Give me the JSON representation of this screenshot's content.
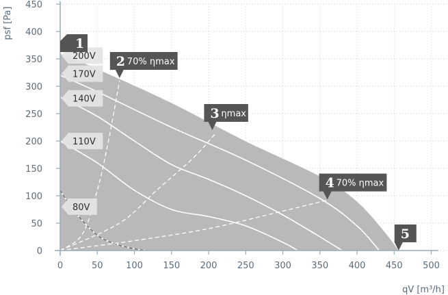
{
  "chart_data": {
    "type": "line",
    "title": "",
    "xlabel": "qV [m³/h]",
    "ylabel": "psf [Pa]",
    "xlim": [
      0,
      520
    ],
    "ylim": [
      0,
      450
    ],
    "x_ticks": [
      "0",
      "50",
      "100",
      "150",
      "200",
      "250",
      "300",
      "350",
      "400",
      "450",
      "500"
    ],
    "y_ticks": [
      "0",
      "50",
      "100",
      "150",
      "200",
      "250",
      "300",
      "350",
      "400",
      "450"
    ],
    "grid": true,
    "colors": {
      "area": "#b9b9b9",
      "curve": "#ffffff",
      "efficiency_line": "#ffffff",
      "marker": "#555555",
      "voltage_label_bg": "#e4e4e4",
      "axis": "#9aaab9"
    },
    "operating_area": {
      "x": [
        0,
        0,
        50,
        150,
        250,
        350,
        400,
        440,
        456
      ],
      "y": [
        0,
        360,
        332,
        270,
        200,
        136,
        90,
        30,
        0
      ]
    },
    "series": [
      {
        "name": "200V",
        "x": [
          0,
          50,
          150,
          250,
          350,
          400,
          440,
          456
        ],
        "y": [
          360,
          332,
          270,
          200,
          136,
          90,
          30,
          0
        ]
      },
      {
        "name": "170V",
        "x": [
          0,
          50,
          150,
          250,
          350,
          400,
          430
        ],
        "y": [
          320,
          290,
          225,
          165,
          95,
          45,
          0
        ]
      },
      {
        "name": "140V",
        "x": [
          0,
          50,
          100,
          150,
          200,
          250,
          300,
          350,
          380
        ],
        "y": [
          280,
          245,
          200,
          157,
          130,
          100,
          65,
          25,
          0
        ]
      },
      {
        "name": "110V",
        "x": [
          0,
          50,
          100,
          150,
          200,
          250,
          300,
          320
        ],
        "y": [
          200,
          160,
          110,
          75,
          62,
          45,
          15,
          0
        ]
      },
      {
        "name": "80V",
        "x": [
          0,
          20,
          50,
          75,
          100,
          120
        ],
        "y": [
          110,
          70,
          28,
          12,
          3,
          0
        ]
      }
    ],
    "efficiency_lines": [
      {
        "marker": "1",
        "name": "",
        "x": [
          0
        ],
        "y": [
          360
        ]
      },
      {
        "marker": "2",
        "name": "70% ηmax",
        "x": [
          0,
          30,
          50,
          65,
          80
        ],
        "y": [
          0,
          30,
          110,
          200,
          310
        ]
      },
      {
        "marker": "3",
        "name": "ηmax",
        "x": [
          0,
          80,
          130,
          180,
          210
        ],
        "y": [
          0,
          50,
          110,
          170,
          215
        ]
      },
      {
        "marker": "4",
        "name": "70% ηmax",
        "x": [
          0,
          100,
          200,
          300,
          360
        ],
        "y": [
          0,
          18,
          40,
          72,
          92
        ]
      },
      {
        "marker": "5",
        "name": "",
        "x": [
          456
        ],
        "y": [
          0
        ]
      }
    ],
    "labels": [
      {
        "kind": "voltage",
        "text": "200V",
        "x": 0,
        "y": 356
      },
      {
        "kind": "voltage",
        "text": "170V",
        "x": 0,
        "y": 323
      },
      {
        "kind": "voltage",
        "text": "140V",
        "x": 0,
        "y": 278
      },
      {
        "kind": "voltage",
        "text": "110V",
        "x": 0,
        "y": 200
      },
      {
        "kind": "voltage",
        "text": "80V",
        "x": 0,
        "y": 80
      },
      {
        "kind": "marker",
        "num": "1",
        "text": "",
        "x": 0,
        "y": 360
      },
      {
        "kind": "marker",
        "num": "2",
        "text": "70% ηmax",
        "x": 80,
        "y": 315
      },
      {
        "kind": "marker",
        "num": "3",
        "text": "ηmax",
        "x": 205,
        "y": 220
      },
      {
        "kind": "marker",
        "num": "4",
        "text": "70% ηmax",
        "x": 360,
        "y": 93
      },
      {
        "kind": "marker",
        "num": "5",
        "text": "",
        "x": 456,
        "y": 0
      }
    ],
    "dashed_80v_region": {
      "x": [
        0,
        20,
        50,
        75,
        100,
        120
      ],
      "y": [
        110,
        70,
        28,
        12,
        3,
        0
      ]
    }
  }
}
